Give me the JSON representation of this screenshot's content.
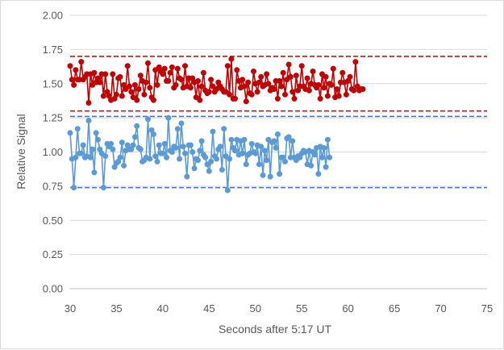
{
  "chart_data": {
    "type": "line",
    "title": "",
    "xlabel": "Seconds after 5:17 UT",
    "ylabel": "Relative Signal",
    "xlim": [
      30,
      75
    ],
    "ylim": [
      0.0,
      2.0
    ],
    "x_ticks": [
      30,
      35,
      40,
      45,
      50,
      55,
      60,
      65,
      70,
      75
    ],
    "x_tick_labels": [
      "30",
      "35",
      "40",
      "45",
      "50",
      "55",
      "60",
      "65",
      "70",
      "75"
    ],
    "y_ticks": [
      0.0,
      0.25,
      0.5,
      0.75,
      1.0,
      1.25,
      1.5,
      1.75,
      2.0
    ],
    "y_tick_labels": [
      "0.00",
      "0.25",
      "0.50",
      "0.75",
      "1.00",
      "1.25",
      "1.50",
      "1.75",
      "2.00"
    ],
    "grid": "horizontal",
    "legend": "none",
    "x_start": 30.0,
    "x_step": 0.2,
    "series": [
      {
        "color": "#c00000",
        "marker": "circle",
        "values": [
          1.63,
          1.53,
          1.49,
          1.6,
          1.53,
          1.53,
          1.66,
          1.53,
          1.55,
          1.57,
          1.36,
          1.57,
          1.49,
          1.58,
          1.51,
          1.54,
          1.51,
          1.57,
          1.41,
          1.57,
          1.44,
          1.41,
          1.38,
          1.57,
          1.39,
          1.42,
          1.54,
          1.55,
          1.41,
          1.49,
          1.46,
          1.63,
          1.48,
          1.44,
          1.4,
          1.49,
          1.38,
          1.46,
          1.56,
          1.52,
          1.42,
          1.51,
          1.65,
          1.47,
          1.4,
          1.38,
          1.6,
          1.49,
          1.62,
          1.59,
          1.57,
          1.61,
          1.52,
          1.52,
          1.58,
          1.62,
          1.47,
          1.49,
          1.61,
          1.54,
          1.53,
          1.47,
          1.63,
          1.48,
          1.54,
          1.47,
          1.54,
          1.51,
          1.4,
          1.52,
          1.38,
          1.48,
          1.58,
          1.45,
          1.43,
          1.44,
          1.53,
          1.48,
          1.44,
          1.46,
          1.51,
          1.48,
          1.46,
          1.44,
          1.44,
          1.63,
          1.42,
          1.68,
          1.39,
          1.39,
          1.6,
          1.52,
          1.47,
          1.53,
          1.48,
          1.37,
          1.51,
          1.43,
          1.42,
          1.59,
          1.5,
          1.44,
          1.51,
          1.55,
          1.48,
          1.49,
          1.57,
          1.5,
          1.45,
          1.47,
          1.46,
          1.52,
          1.39,
          1.52,
          1.48,
          1.58,
          1.42,
          1.53,
          1.64,
          1.55,
          1.44,
          1.39,
          1.56,
          1.45,
          1.48,
          1.63,
          1.48,
          1.46,
          1.54,
          1.45,
          1.5,
          1.59,
          1.49,
          1.47,
          1.49,
          1.39,
          1.57,
          1.47,
          1.55,
          1.41,
          1.5,
          1.49,
          1.61,
          1.4,
          1.46,
          1.41,
          1.51,
          1.58,
          1.51,
          1.42,
          1.52,
          1.55,
          1.46,
          1.45,
          1.66,
          1.48,
          1.45,
          1.46,
          1.46
        ]
      },
      {
        "color": "#5b9bd5",
        "marker": "circle",
        "values": [
          1.14,
          0.95,
          0.74,
          0.96,
          1.17,
          0.99,
          0.99,
          1.05,
          0.96,
          0.97,
          1.23,
          0.96,
          1.02,
          0.85,
          1.14,
          1.09,
          1.02,
          0.99,
          0.74,
          0.97,
          1.06,
          1.04,
          1.06,
          1.02,
          0.89,
          0.92,
          0.93,
          0.96,
          1.07,
          0.9,
          1.01,
          1.05,
          1.02,
          1.02,
          1.05,
          1.11,
          1.19,
          1.03,
          1.02,
          0.93,
          0.94,
          0.96,
          1.24,
          0.95,
          1.16,
          1.13,
          0.97,
          0.93,
          1.05,
          0.99,
          0.99,
          1.06,
          0.96,
          1.25,
          1.01,
          1.0,
          1.04,
          1.03,
          1.17,
          0.95,
          1.21,
          1.04,
          0.99,
          0.82,
          1.05,
          1.05,
          1.0,
          0.88,
          0.95,
          0.94,
          1.01,
          1.08,
          0.98,
          0.96,
          0.91,
          0.86,
          0.93,
          1.15,
          0.97,
          0.95,
          1.02,
          1.04,
          0.87,
          1.17,
          0.97,
          0.72,
          0.95,
          1.09,
          1.03,
          1.01,
          1.09,
          0.98,
          1.08,
          0.99,
          1.09,
          0.91,
          0.98,
          0.99,
          1.06,
          1.0,
          0.99,
          1.05,
          0.91,
          1.04,
          0.83,
          1.01,
          0.94,
          1.09,
          0.82,
          1.07,
          1.08,
          1.03,
          1.13,
          0.84,
          0.96,
          0.96,
          0.93,
          1.1,
          1.11,
          0.96,
          1.08,
          0.96,
          0.94,
          0.97,
          0.96,
          0.99,
          1.01,
          1.0,
          0.91,
          1.01,
          0.9,
          1.0,
          0.98,
          1.03,
          0.84,
          1.04,
          0.96,
          1.03,
          0.89,
          1.09,
          0.96
        ]
      }
    ],
    "reference_lines": [
      {
        "y": 1.7,
        "color": "#c00000",
        "style": "dashed"
      },
      {
        "y": 1.3,
        "color": "#c00000",
        "style": "dashed"
      },
      {
        "y": 1.26,
        "color": "#4472c4",
        "style": "dashed"
      },
      {
        "y": 0.74,
        "color": "#4472c4",
        "style": "dashed"
      }
    ]
  }
}
